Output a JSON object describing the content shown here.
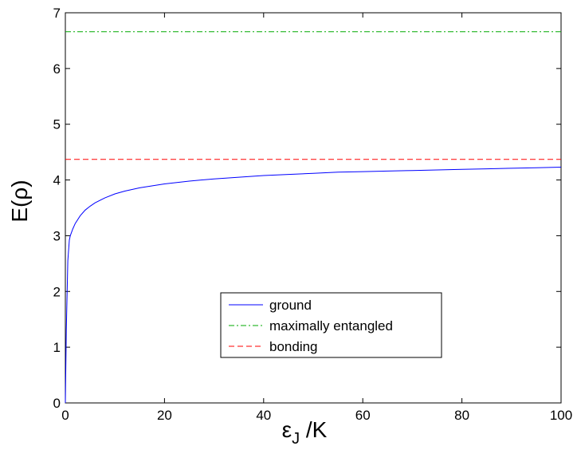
{
  "chart_data": {
    "type": "line",
    "xlabel_main": "ε",
    "xlabel_sub": "J",
    "xlabel_rest": " /K",
    "ylabel": "E(ρ)",
    "xlim": [
      0,
      100
    ],
    "ylim": [
      0,
      7
    ],
    "xticks": [
      0,
      20,
      40,
      60,
      80,
      100
    ],
    "yticks": [
      0,
      1,
      2,
      3,
      4,
      5,
      6,
      7
    ],
    "grid": false,
    "legend_position": "center-bottom",
    "series": [
      {
        "name": "ground",
        "color": "#0000ff",
        "style": "solid",
        "x": [
          0,
          0.2,
          0.5,
          0.8,
          1,
          1.5,
          2,
          3,
          4,
          5,
          6,
          8,
          10,
          12,
          15,
          20,
          25,
          30,
          35,
          40,
          45,
          50,
          55,
          60,
          65,
          70,
          75,
          80,
          85,
          90,
          95,
          100
        ],
        "y": [
          0,
          1.3,
          2.55,
          2.92,
          3.0,
          3.12,
          3.22,
          3.36,
          3.46,
          3.53,
          3.59,
          3.68,
          3.75,
          3.8,
          3.86,
          3.93,
          3.98,
          4.02,
          4.05,
          4.08,
          4.1,
          4.12,
          4.14,
          4.15,
          4.16,
          4.17,
          4.18,
          4.19,
          4.2,
          4.21,
          4.22,
          4.23
        ]
      },
      {
        "name": "maximally entangled",
        "color": "#00aa00",
        "style": "dashdot",
        "x": [
          0,
          100
        ],
        "y": [
          6.66,
          6.66
        ]
      },
      {
        "name": "bonding",
        "color": "#ff0000",
        "style": "dashed",
        "x": [
          0,
          100
        ],
        "y": [
          4.37,
          4.37
        ]
      }
    ]
  }
}
